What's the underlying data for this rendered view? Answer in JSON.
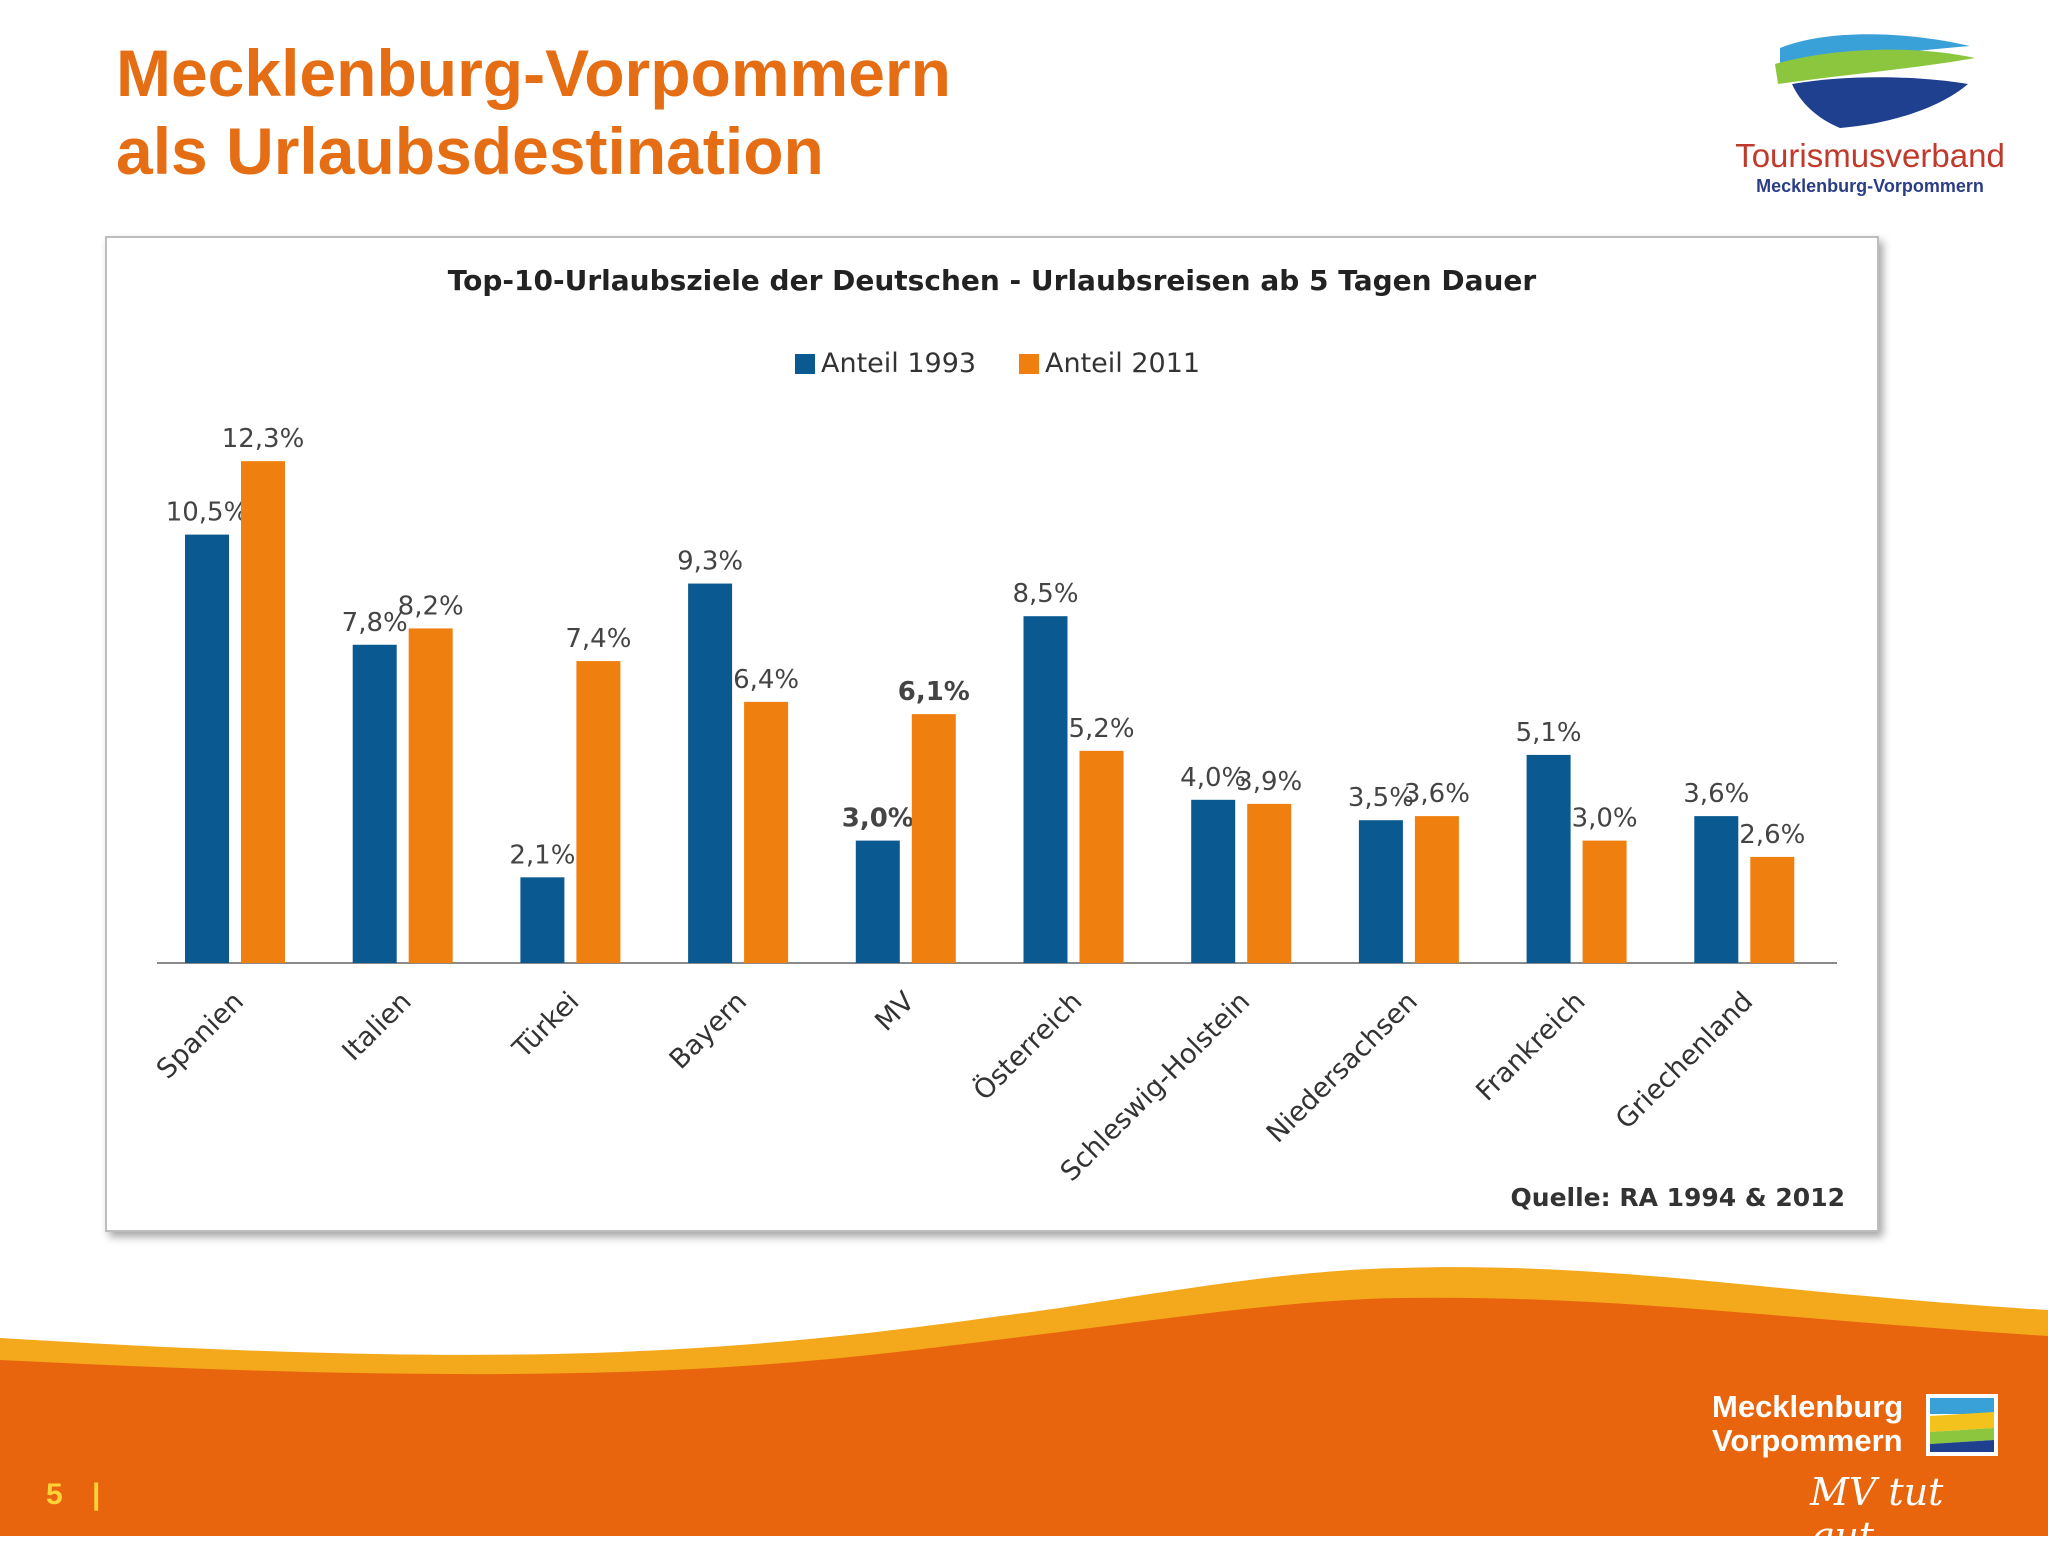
{
  "slide": {
    "title_line1": "Mecklenburg-Vorpommern",
    "title_line2": "als Urlaubsdestination",
    "page_number": "5",
    "page_separator": "|"
  },
  "logo_top": {
    "org_name": "Tourismusverband",
    "org_region": "Mecklenburg-Vorpommern"
  },
  "logo_bottom": {
    "word1": "Mecklenburg",
    "word2": "Vorpommern",
    "slogan": "MV tut gut."
  },
  "colors": {
    "accent": "#e56e14",
    "series_1993": "#0a5a91",
    "series_2011": "#ef7f0e",
    "band_orange": "#e8650e",
    "band_yellow": "#f4a81c"
  },
  "chart_data": {
    "type": "bar",
    "title": "Top-10-Urlaubsziele der Deutschen - Urlaubsreisen ab 5 Tagen Dauer",
    "source": "Quelle: RA 1994 & 2012",
    "legend_position": "top-center",
    "grid": false,
    "ylim": [
      0,
      13
    ],
    "categories": [
      "Spanien",
      "Italien",
      "Türkei",
      "Bayern",
      "MV",
      "Österreich",
      "Schleswig-Holstein",
      "Niedersachsen",
      "Frankreich",
      "Griechenland"
    ],
    "series": [
      {
        "name": "Anteil 1993",
        "values": [
          10.5,
          7.8,
          2.1,
          9.3,
          3.0,
          8.5,
          4.0,
          3.5,
          5.1,
          3.6
        ],
        "labels": [
          "10,5%",
          "7,8%",
          "2,1%",
          "9,3%",
          "3,0%",
          "8,5%",
          "4,0%",
          "3,5%",
          "5,1%",
          "3,6%"
        ]
      },
      {
        "name": "Anteil 2011",
        "values": [
          12.3,
          8.2,
          7.4,
          6.4,
          6.1,
          5.2,
          3.9,
          3.6,
          3.0,
          2.6
        ],
        "labels": [
          "12,3%",
          "8,2%",
          "7,4%",
          "6,4%",
          "6,1%",
          "5,2%",
          "3,9%",
          "3,6%",
          "3,0%",
          "2,6%"
        ]
      }
    ]
  }
}
